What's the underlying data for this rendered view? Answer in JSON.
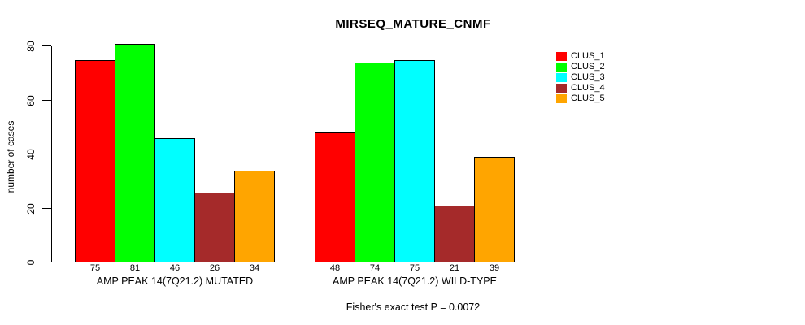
{
  "chart_data": {
    "type": "bar",
    "title": "MIRSEQ_MATURE_CNMF",
    "ylabel": "number of cases",
    "ylim": [
      0,
      80
    ],
    "yticks": [
      0,
      20,
      40,
      60,
      80
    ],
    "categories": [
      "AMP PEAK 14(7Q21.2) MUTATED",
      "AMP PEAK 14(7Q21.2) WILD-TYPE"
    ],
    "series": [
      {
        "name": "CLUS_1",
        "color": "#ff0000",
        "values": [
          75,
          48
        ]
      },
      {
        "name": "CLUS_2",
        "color": "#00ff00",
        "values": [
          81,
          74
        ]
      },
      {
        "name": "CLUS_3",
        "color": "#00ffff",
        "values": [
          46,
          75
        ]
      },
      {
        "name": "CLUS_4",
        "color": "#a52a2a",
        "values": [
          26,
          21
        ]
      },
      {
        "name": "CLUS_5",
        "color": "#ffa500",
        "values": [
          34,
          39
        ]
      },
      {
        "note": ""
      }
    ],
    "bar_value_labels": true,
    "legend_position": "right",
    "grid": false,
    "annotation": "Fisher's exact test P = 0.0072"
  }
}
